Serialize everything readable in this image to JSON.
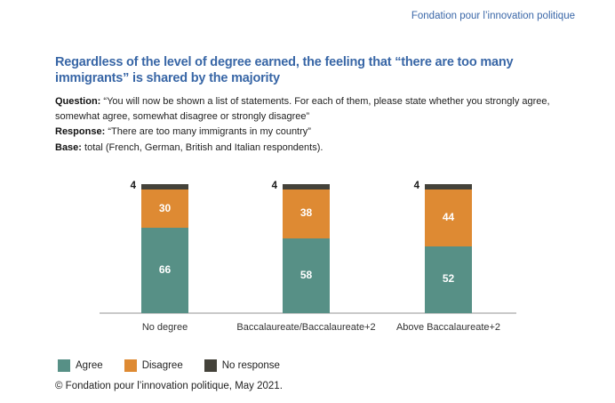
{
  "page": {
    "brand": "Fondation pour l’innovation politique",
    "title": "Regardless of the level of degree earned, the feeling that “there are too many immigrants” is shared by the majority",
    "question_label": "Question:",
    "question_text": "“You will now be shown a list of statements. For each of them, please state whether you strongly agree, somewhat agree, somewhat disagree or strongly disagree”",
    "response_label": "Response:",
    "response_text": "“There are too many immigrants in my country”",
    "base_label": "Base:",
    "base_text": "total (French, German, British and Italian respondents).",
    "footer": "© Fondation pour l’innovation politique, May 2021."
  },
  "colors": {
    "agree": "#579086",
    "disagree": "#de8a33",
    "no_response": "#44423a",
    "brand_blue": "#3a67a8",
    "axis": "#c9c9c9"
  },
  "chart_data": {
    "type": "bar",
    "stacked": true,
    "units": "percent",
    "categories": [
      "No degree",
      "Baccalaureate/Baccalaureate+2",
      "Above Baccalaureate+2"
    ],
    "series": [
      {
        "name": "Agree",
        "color": "#579086",
        "values": [
          66,
          58,
          52
        ],
        "label_outside": false
      },
      {
        "name": "Disagree",
        "color": "#de8a33",
        "values": [
          30,
          38,
          44
        ],
        "label_outside": false
      },
      {
        "name": "No response",
        "color": "#44423a",
        "values": [
          4,
          4,
          4
        ],
        "label_outside": true
      }
    ],
    "ylim": [
      0,
      100
    ],
    "grid": false,
    "axis_labels_shown": false,
    "legend_position": "bottom-left",
    "value_label_style": "white bold inside segments; 'No response' value printed left of bar top"
  }
}
